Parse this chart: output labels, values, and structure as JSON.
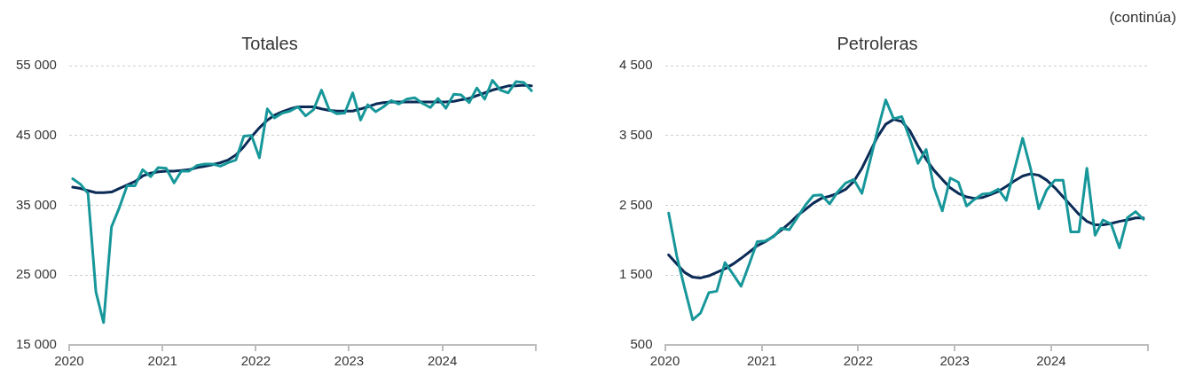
{
  "chart_data": [
    {
      "type": "line",
      "title": "Totales",
      "x": [
        "2020-01-15",
        "2020-02-15",
        "2020-03-15",
        "2020-04-15",
        "2020-05-15",
        "2020-06-15",
        "2020-07-15",
        "2020-08-15",
        "2020-09-15",
        "2020-10-15",
        "2020-11-15",
        "2020-12-15",
        "2021-01-15",
        "2021-02-15",
        "2021-03-15",
        "2021-04-15",
        "2021-05-15",
        "2021-06-15",
        "2021-07-15",
        "2021-08-15",
        "2021-09-15",
        "2021-10-15",
        "2021-11-15",
        "2021-12-15",
        "2022-01-15",
        "2022-02-15",
        "2022-03-15",
        "2022-04-15",
        "2022-05-15",
        "2022-06-15",
        "2022-07-15",
        "2022-08-15",
        "2022-09-15",
        "2022-10-15",
        "2022-11-15",
        "2022-12-15",
        "2023-01-15",
        "2023-02-15",
        "2023-03-15",
        "2023-04-15",
        "2023-05-15",
        "2023-06-15",
        "2023-07-15",
        "2023-08-15",
        "2023-09-15",
        "2023-10-15",
        "2023-11-15",
        "2023-12-15",
        "2024-01-15",
        "2024-02-15",
        "2024-03-15",
        "2024-04-15",
        "2024-05-15",
        "2024-06-15",
        "2024-07-15",
        "2024-08-15",
        "2024-09-15",
        "2024-10-15",
        "2024-11-15",
        "2024-12-15"
      ],
      "series": [
        {
          "color": "#17979a",
          "values": [
            38800,
            38000,
            36700,
            22600,
            18200,
            31900,
            34600,
            37800,
            37800,
            40100,
            39100,
            40400,
            40300,
            38200,
            39900,
            39900,
            40700,
            40900,
            40900,
            40600,
            41100,
            41500,
            44900,
            45000,
            41800,
            48800,
            47500,
            48200,
            48500,
            49100,
            47800,
            48700,
            51500,
            48700,
            48100,
            48200,
            51100,
            47200,
            49400,
            48400,
            49100,
            50000,
            49500,
            50200,
            50400,
            49600,
            49000,
            50300,
            48900,
            50900,
            50800,
            49700,
            51800,
            50200,
            52900,
            51500,
            51100,
            52700,
            52600,
            51400
          ]
        },
        {
          "color": "#0b2b57",
          "values": [
            37600,
            37400,
            37100,
            36800,
            36800,
            36900,
            37400,
            37900,
            38400,
            39200,
            39600,
            39800,
            39900,
            39900,
            40000,
            40100,
            40400,
            40600,
            40800,
            41100,
            41500,
            42200,
            43400,
            44800,
            46100,
            47200,
            47900,
            48400,
            48800,
            49100,
            49100,
            49100,
            48800,
            48600,
            48500,
            48500,
            48500,
            48800,
            49100,
            49500,
            49700,
            49800,
            49800,
            49800,
            49800,
            49800,
            49800,
            49800,
            49800,
            49900,
            50100,
            50300,
            50700,
            51100,
            51500,
            51800,
            52100,
            52100,
            52200,
            52100
          ]
        }
      ],
      "xlim": [
        "2020",
        "2025"
      ],
      "xticks": [
        "2020",
        "2021",
        "2022",
        "2023",
        "2024",
        {
          "value": "2025",
          "label": null
        }
      ],
      "ylim": [
        15000,
        55000
      ],
      "yticks": [
        {
          "value": 15000,
          "label": "15 000"
        },
        {
          "value": 25000,
          "label": "25 000"
        },
        {
          "value": 35000,
          "label": "35 000"
        },
        {
          "value": 45000,
          "label": "45 000"
        },
        {
          "value": 55000,
          "label": "55 000"
        }
      ],
      "grid": "y"
    },
    {
      "type": "line",
      "title": "Petroleras",
      "annotations": [
        "(continúa)"
      ],
      "x": [
        "2020-01-15",
        "2020-02-15",
        "2020-03-15",
        "2020-04-15",
        "2020-05-15",
        "2020-06-15",
        "2020-07-15",
        "2020-08-15",
        "2020-09-15",
        "2020-10-15",
        "2020-11-15",
        "2020-12-15",
        "2021-01-15",
        "2021-02-15",
        "2021-03-15",
        "2021-04-15",
        "2021-05-15",
        "2021-06-15",
        "2021-07-15",
        "2021-08-15",
        "2021-09-15",
        "2021-10-15",
        "2021-11-15",
        "2021-12-15",
        "2022-01-15",
        "2022-02-15",
        "2022-03-15",
        "2022-04-15",
        "2022-05-15",
        "2022-06-15",
        "2022-07-15",
        "2022-08-15",
        "2022-09-15",
        "2022-10-15",
        "2022-11-15",
        "2022-12-15",
        "2023-01-15",
        "2023-02-15",
        "2023-03-15",
        "2023-04-15",
        "2023-05-15",
        "2023-06-15",
        "2023-07-15",
        "2023-08-15",
        "2023-09-15",
        "2023-10-15",
        "2023-11-15",
        "2023-12-15",
        "2024-01-15",
        "2024-02-15",
        "2024-03-15",
        "2024-04-15",
        "2024-05-15",
        "2024-06-15",
        "2024-07-15",
        "2024-08-15",
        "2024-09-15",
        "2024-10-15",
        "2024-11-15",
        "2024-12-15"
      ],
      "series": [
        {
          "color": "#17979a",
          "values": [
            2390,
            1770,
            1320,
            860,
            960,
            1250,
            1270,
            1680,
            1510,
            1340,
            1660,
            1980,
            1990,
            2050,
            2170,
            2150,
            2320,
            2500,
            2640,
            2650,
            2520,
            2690,
            2820,
            2870,
            2670,
            3140,
            3570,
            4010,
            3740,
            3770,
            3460,
            3100,
            3300,
            2750,
            2420,
            2890,
            2830,
            2490,
            2580,
            2660,
            2670,
            2730,
            2570,
            3010,
            3460,
            3030,
            2450,
            2720,
            2860,
            2860,
            2120,
            2120,
            3030,
            2070,
            2290,
            2230,
            1890,
            2320,
            2410,
            2300
          ]
        },
        {
          "color": "#0b2b57",
          "values": [
            1790,
            1660,
            1540,
            1470,
            1460,
            1490,
            1540,
            1590,
            1660,
            1740,
            1830,
            1920,
            1980,
            2060,
            2140,
            2240,
            2350,
            2440,
            2530,
            2600,
            2630,
            2670,
            2730,
            2840,
            3030,
            3270,
            3480,
            3660,
            3730,
            3700,
            3570,
            3350,
            3160,
            3000,
            2870,
            2750,
            2670,
            2620,
            2600,
            2610,
            2650,
            2700,
            2770,
            2850,
            2920,
            2950,
            2930,
            2860,
            2750,
            2620,
            2500,
            2370,
            2270,
            2220,
            2220,
            2240,
            2270,
            2290,
            2320,
            2320
          ]
        }
      ],
      "xlim": [
        "2020",
        "2025"
      ],
      "xticks": [
        "2020",
        "2021",
        "2022",
        "2023",
        "2024",
        {
          "value": "2025",
          "label": null
        }
      ],
      "ylim": [
        500,
        4500
      ],
      "yticks": [
        500,
        {
          "value": 1500,
          "label": "1 500"
        },
        {
          "value": 2500,
          "label": "2 500"
        },
        {
          "value": 3500,
          "label": "3 500"
        },
        {
          "value": 4500,
          "label": "4 500"
        }
      ],
      "grid": "y"
    }
  ]
}
